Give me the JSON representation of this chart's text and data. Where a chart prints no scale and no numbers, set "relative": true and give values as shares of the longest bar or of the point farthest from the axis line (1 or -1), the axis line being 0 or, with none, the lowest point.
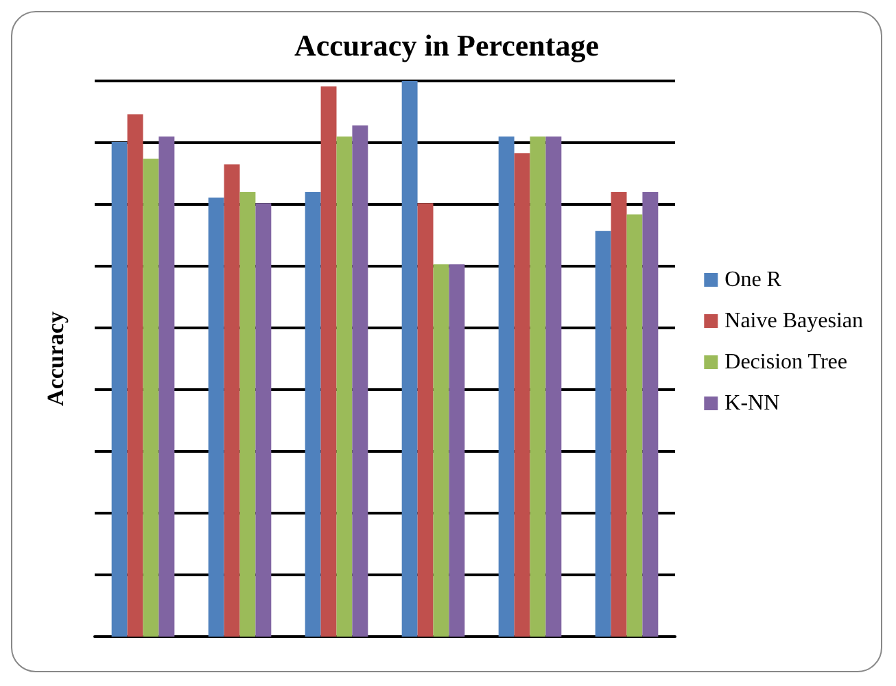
{
  "chart_data": {
    "type": "bar",
    "title": "Accuracy in Percentage",
    "ylabel": "Accuracy",
    "relative": true,
    "grid": true,
    "legend": "right",
    "categories": [
      null,
      null,
      null,
      null,
      null,
      null
    ],
    "series": [
      {
        "name": "One R",
        "color": "#4f81bd",
        "values": [
          0.89,
          0.79,
          0.8,
          1,
          0.9,
          0.73
        ]
      },
      {
        "name": "Naive Bayesian",
        "color": "#c0504d",
        "values": [
          0.94,
          0.85,
          0.99,
          0.78,
          0.87,
          0.8
        ]
      },
      {
        "name": "Decision Tree",
        "color": "#9bbb59",
        "values": [
          0.86,
          0.8,
          0.9,
          0.67,
          0.9,
          0.76
        ]
      },
      {
        "name": "K-NN",
        "color": "#8064a2",
        "values": [
          0.9,
          0.78,
          0.92,
          0.67,
          0.9,
          0.8
        ]
      }
    ]
  }
}
